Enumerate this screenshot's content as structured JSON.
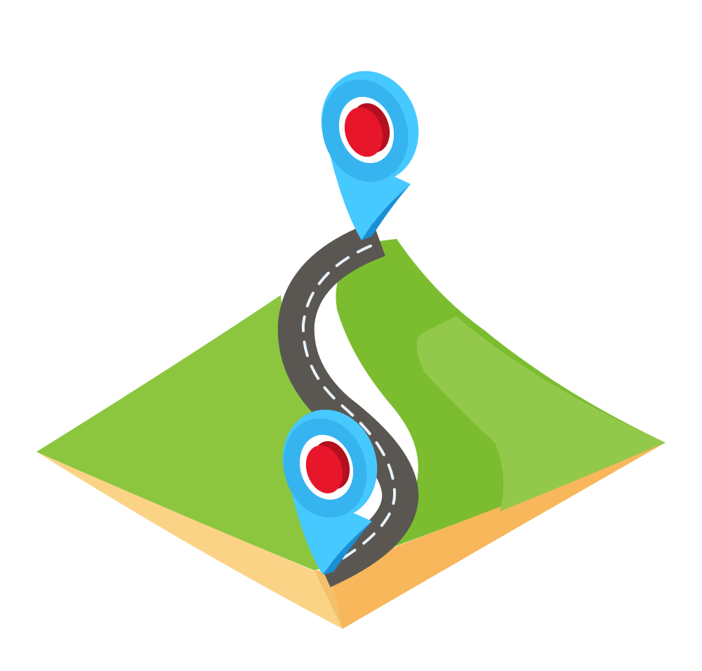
{
  "scene": {
    "subject": "isometric-route-map-icon",
    "colors": {
      "background": "#ffffff",
      "grass_light": "#8cc63f",
      "grass_dark": "#7bbd2f",
      "grass_highlight": "#93c94a",
      "soil_left": "#fbd387",
      "soil_right": "#f7b75a",
      "soil_front": "#f4c06a",
      "road": "#5a5753",
      "road_dash": "#e8f2fb",
      "pin_light": "#46c9ff",
      "pin_mid": "#36b4f0",
      "pin_dark": "#1a8fd6",
      "pin_core": "#e8162a",
      "pin_core_shade": "#b30f1f",
      "pin_hole": "#ffffff"
    }
  }
}
